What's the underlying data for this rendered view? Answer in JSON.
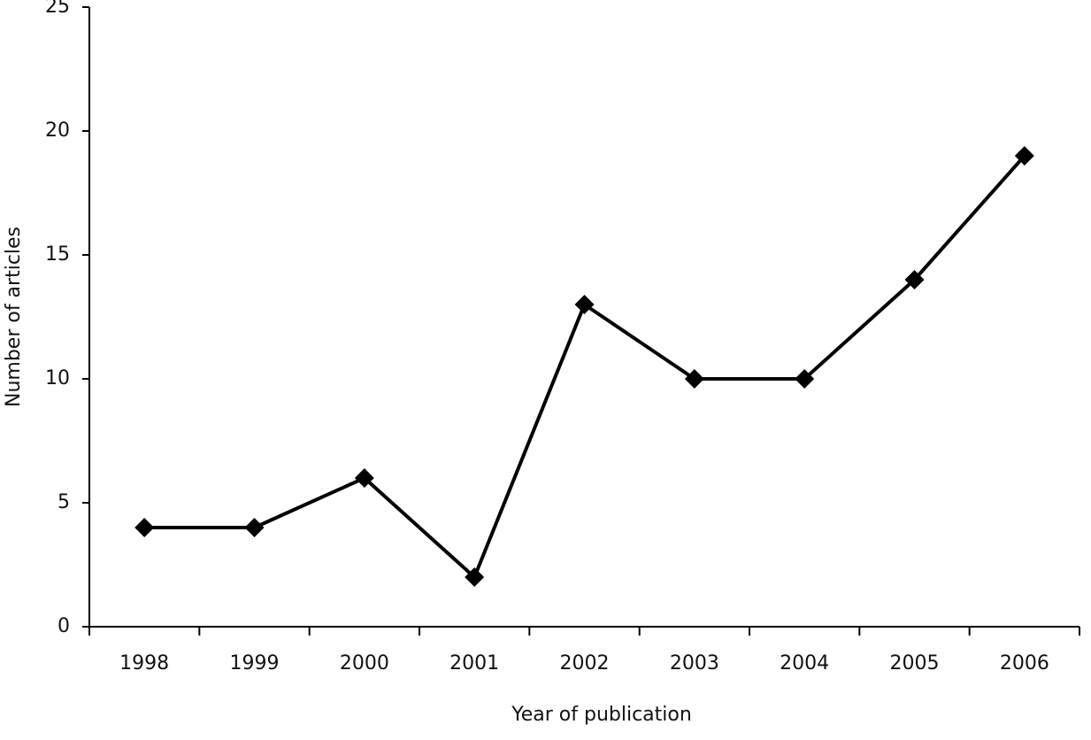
{
  "chart_data": {
    "type": "line",
    "x_label": "Year of publication",
    "y_label": "Number of articles",
    "categories": [
      "1998",
      "1999",
      "2000",
      "2001",
      "2002",
      "2003",
      "2004",
      "2005",
      "2006"
    ],
    "values": [
      4,
      4,
      6,
      2,
      13,
      10,
      10,
      14,
      19
    ],
    "color": "#000000",
    "ylim": [
      0,
      25
    ],
    "yticks": [
      0,
      5,
      10,
      15,
      20,
      25
    ],
    "grid": false
  }
}
